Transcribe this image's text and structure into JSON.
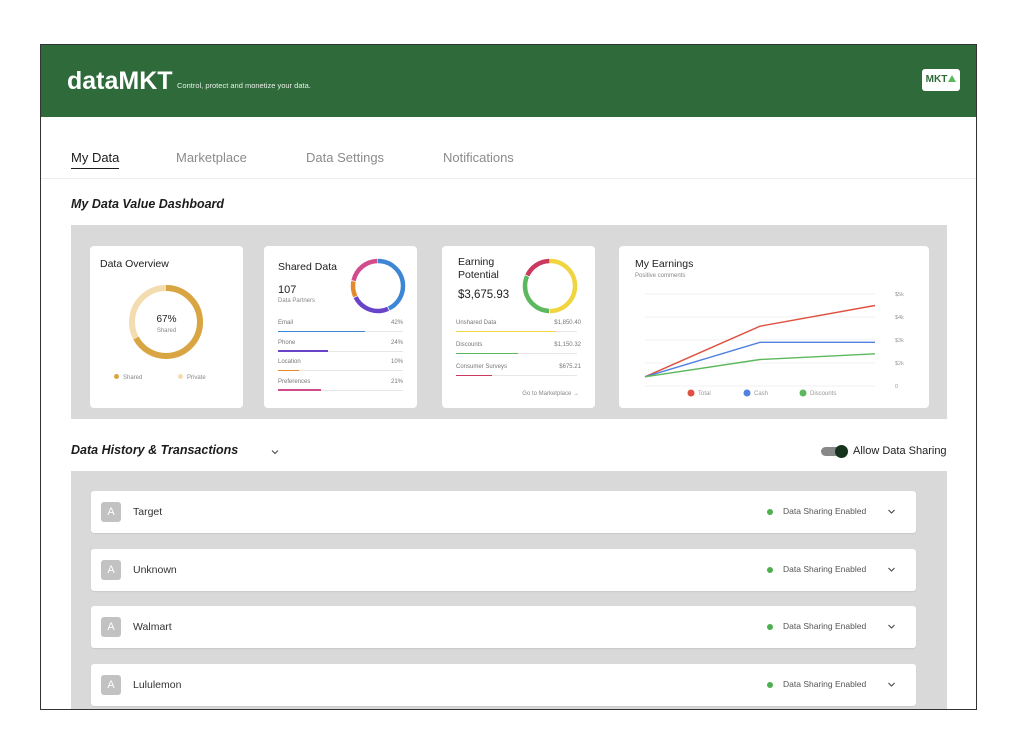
{
  "header": {
    "brand": "dataMKT",
    "tagline": "Control, protect and monetize your data.",
    "badge": "MKT",
    "colors": {
      "header_bg": "#2e6a3a",
      "badge_accent": "#5cb85c"
    }
  },
  "tabs": [
    {
      "label": "My Data",
      "active": true
    },
    {
      "label": "Marketplace",
      "active": false
    },
    {
      "label": "Data Settings",
      "active": false
    },
    {
      "label": "Notifications",
      "active": false
    }
  ],
  "dashboard": {
    "title": "My Data Value Dashboard",
    "overview": {
      "title": "Data Overview",
      "percent_label": "67%",
      "sub_label": "Shared",
      "shared_fraction": 0.67,
      "legend": [
        {
          "label": "Shared",
          "color": "#d8a542"
        },
        {
          "label": "Private",
          "color": "#f3dcb0"
        }
      ]
    },
    "shared": {
      "title": "Shared Data",
      "count": "107",
      "count_label": "Data Partners",
      "rows": [
        {
          "label": "Email",
          "value": "42%",
          "fraction": 0.42,
          "color": "#3d86d4"
        },
        {
          "label": "Phone",
          "value": "24%",
          "fraction": 0.24,
          "color": "#6a44c8"
        },
        {
          "label": "Location",
          "value": "10%",
          "fraction": 0.1,
          "color": "#e48a2c"
        },
        {
          "label": "Preferences",
          "value": "21%",
          "fraction": 0.21,
          "color": "#d04c8c"
        }
      ]
    },
    "earning": {
      "title_line1": "Earning",
      "title_line2": "Potential",
      "total": "$3,675.93",
      "rows": [
        {
          "label": "Unshared Data",
          "value": "$1,850.40",
          "fraction": 0.5,
          "color": "#f0d540"
        },
        {
          "label": "Discounts",
          "value": "$1,150.32",
          "fraction": 0.31,
          "color": "#5cb85c"
        },
        {
          "label": "Consumer Surveys",
          "value": "$675.21",
          "fraction": 0.18,
          "color": "#c93a5e"
        }
      ],
      "link": "Go to Marketplace →"
    },
    "earnings_chart": {
      "title": "My Earnings",
      "subtitle": "Positive comments"
    }
  },
  "chart_data": {
    "type": "line",
    "title": "My Earnings",
    "subtitle": "Positive comments",
    "x": [
      0,
      1,
      2
    ],
    "series": [
      {
        "name": "Total",
        "color": "#e05040",
        "values": [
          400,
          2600,
          3500
        ]
      },
      {
        "name": "Cash",
        "color": "#5080e0",
        "values": [
          400,
          1900,
          1900
        ]
      },
      {
        "name": "Discounts",
        "color": "#5cb85c",
        "values": [
          400,
          1150,
          1400
        ]
      }
    ],
    "y_ticks": [
      "0",
      "$2k",
      "$3k",
      "$4k",
      "$5k"
    ],
    "ylim": [
      0,
      4000
    ],
    "grid": true,
    "legend": "bottom"
  },
  "history": {
    "title": "Data History & Transactions",
    "toggle_label": "Allow Data Sharing",
    "toggle_on": true,
    "rows": [
      {
        "avatar": "A",
        "name": "Target",
        "status": "Data Sharing Enabled"
      },
      {
        "avatar": "A",
        "name": "Unknown",
        "status": "Data Sharing Enabled"
      },
      {
        "avatar": "A",
        "name": "Walmart",
        "status": "Data Sharing Enabled"
      },
      {
        "avatar": "A",
        "name": "Lululemon",
        "status": "Data Sharing Enabled"
      }
    ]
  }
}
